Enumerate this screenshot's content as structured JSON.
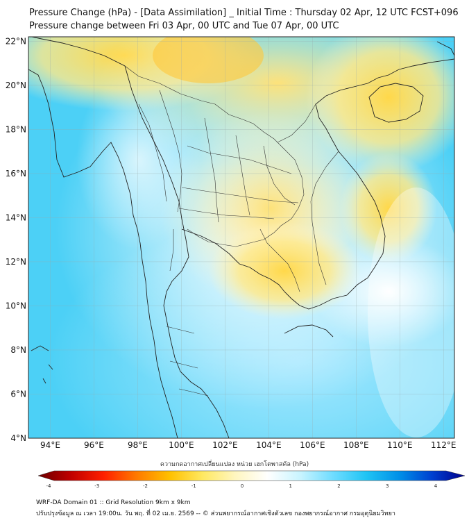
{
  "title": {
    "line1": "Pressure Change (hPa) - [Data Assimilation] _ Initial Time : Thursday 02 Apr, 12 UTC FCST+096",
    "line2": "Pressure change between Fri 03 Apr, 00 UTC and Tue 07 Apr, 00 UTC"
  },
  "map": {
    "lon_ticks": [
      "94°E",
      "96°E",
      "98°E",
      "100°E",
      "102°E",
      "104°E",
      "106°E",
      "108°E",
      "110°E",
      "112°E"
    ],
    "lat_ticks": [
      "22°N",
      "20°N",
      "18°N",
      "16°N",
      "14°N",
      "12°N",
      "10°N",
      "8°N",
      "6°N",
      "4°N"
    ],
    "lon_range": [
      93,
      112.5
    ],
    "lat_range": [
      4,
      22.2
    ],
    "grid": true
  },
  "colorbar": {
    "label": "ความกดอากาศเปลี่ยนแปลง หน่วย เฮกโตพาสคัล (hPa)",
    "ticks": [
      "-4",
      "-3",
      "-2",
      "-1",
      "0",
      "1",
      "2",
      "3",
      "4"
    ],
    "range": [
      -4,
      4
    ],
    "colors": [
      "#6b0000",
      "#c00000",
      "#ff2000",
      "#ff7a00",
      "#ffc000",
      "#ffe860",
      "#fff6c0",
      "#ffffff",
      "#c8f4ff",
      "#6edcff",
      "#20c4f4",
      "#0090e8",
      "#0040d0",
      "#00008c"
    ]
  },
  "footer": {
    "line1": "WRF-DA Domain 01 :: Grid Resolution 9km x 9km",
    "line2": "ปรับปรุงข้อมูล ณ เวลา 19:00น. วัน พฤ. ที่ 02 เม.ย. 2569 -- © ส่วนพยากรณ์อากาศเชิงตัวเลข กองพยากรณ์อากาศ กรมอุตุนิยมวิทยา"
  }
}
